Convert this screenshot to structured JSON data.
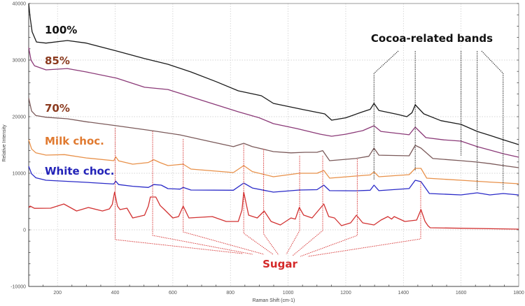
{
  "chart_data": {
    "type": "line",
    "title": "",
    "xlabel": "Raman Shift (cm-1)",
    "ylabel": "Relative Intensity",
    "xlim": [
      100,
      1800
    ],
    "ylim": [
      -10000,
      40000
    ],
    "xticks": [
      "200",
      "400",
      "600",
      "800",
      "1000",
      "1200",
      "1400",
      "1600",
      "1800"
    ],
    "yticks": [
      "-10000",
      "0",
      "10000",
      "20000",
      "30000",
      "40000"
    ],
    "grid": true,
    "series": [
      {
        "name": "100%",
        "color": "#1a1a1a",
        "label_color": "#111111",
        "points": [
          [
            100,
            40000
          ],
          [
            105,
            37500
          ],
          [
            112,
            35000
          ],
          [
            127,
            33200
          ],
          [
            160,
            33000
          ],
          [
            234,
            33460
          ],
          [
            300,
            33000
          ],
          [
            405,
            31600
          ],
          [
            500,
            30300
          ],
          [
            583,
            29260
          ],
          [
            663,
            27900
          ],
          [
            750,
            26200
          ],
          [
            827,
            24570
          ],
          [
            907,
            23700
          ],
          [
            949,
            22350
          ],
          [
            1000,
            21800
          ],
          [
            1054,
            21240
          ],
          [
            1127,
            20500
          ],
          [
            1151,
            19380
          ],
          [
            1200,
            19800
          ],
          [
            1259,
            20860
          ],
          [
            1285,
            21300
          ],
          [
            1298,
            22350
          ],
          [
            1315,
            21100
          ],
          [
            1380,
            20400
          ],
          [
            1412,
            20000
          ],
          [
            1430,
            20700
          ],
          [
            1441,
            22100
          ],
          [
            1471,
            20500
          ],
          [
            1530,
            19300
          ],
          [
            1600,
            18640
          ],
          [
            1656,
            17400
          ],
          [
            1700,
            16700
          ],
          [
            1746,
            15930
          ],
          [
            1800,
            15060
          ]
        ]
      },
      {
        "name": "85%",
        "color": "#8b3a78",
        "label_color": "#8b3a1e",
        "points": [
          [
            100,
            32200
          ],
          [
            108,
            30000
          ],
          [
            120,
            29000
          ],
          [
            160,
            28270
          ],
          [
            234,
            28500
          ],
          [
            300,
            27900
          ],
          [
            405,
            26800
          ],
          [
            502,
            25200
          ],
          [
            583,
            24800
          ],
          [
            700,
            22900
          ],
          [
            827,
            20860
          ],
          [
            900,
            19800
          ],
          [
            949,
            18770
          ],
          [
            1030,
            17900
          ],
          [
            1112,
            16900
          ],
          [
            1151,
            16540
          ],
          [
            1200,
            16900
          ],
          [
            1259,
            17530
          ],
          [
            1298,
            18400
          ],
          [
            1322,
            17400
          ],
          [
            1420,
            16800
          ],
          [
            1441,
            18150
          ],
          [
            1478,
            16300
          ],
          [
            1540,
            15900
          ],
          [
            1600,
            15680
          ],
          [
            1656,
            14700
          ],
          [
            1700,
            14100
          ],
          [
            1746,
            13460
          ],
          [
            1800,
            12840
          ]
        ]
      },
      {
        "name": "70%",
        "color": "#7b5a5a",
        "label_color": "#8b3a1e",
        "points": [
          [
            100,
            23300
          ],
          [
            110,
            21000
          ],
          [
            125,
            20200
          ],
          [
            160,
            19900
          ],
          [
            234,
            19630
          ],
          [
            300,
            19100
          ],
          [
            405,
            18400
          ],
          [
            527,
            17530
          ],
          [
            624,
            16790
          ],
          [
            720,
            15700
          ],
          [
            810,
            14700
          ],
          [
            846,
            15300
          ],
          [
            876,
            14700
          ],
          [
            949,
            13830
          ],
          [
            1010,
            13600
          ],
          [
            1059,
            13700
          ],
          [
            1100,
            13700
          ],
          [
            1120,
            14000
          ],
          [
            1144,
            12220
          ],
          [
            1234,
            12600
          ],
          [
            1280,
            13000
          ],
          [
            1298,
            14450
          ],
          [
            1315,
            13200
          ],
          [
            1420,
            13090
          ],
          [
            1441,
            14940
          ],
          [
            1461,
            14450
          ],
          [
            1502,
            12600
          ],
          [
            1600,
            12220
          ],
          [
            1656,
            11980
          ],
          [
            1700,
            11700
          ],
          [
            1746,
            11360
          ],
          [
            1800,
            10990
          ]
        ]
      },
      {
        "name": "Milk choc.",
        "color": "#e8914a",
        "label_color": "#e07a30",
        "points": [
          [
            100,
            15930
          ],
          [
            110,
            14300
          ],
          [
            125,
            13600
          ],
          [
            160,
            13210
          ],
          [
            224,
            13300
          ],
          [
            300,
            12700
          ],
          [
            395,
            12220
          ],
          [
            402,
            12900
          ],
          [
            412,
            12200
          ],
          [
            461,
            11600
          ],
          [
            515,
            11900
          ],
          [
            534,
            12400
          ],
          [
            555,
            11900
          ],
          [
            583,
            11360
          ],
          [
            636,
            11600
          ],
          [
            663,
            10740
          ],
          [
            810,
            10120
          ],
          [
            846,
            11360
          ],
          [
            876,
            10300
          ],
          [
            949,
            9380
          ],
          [
            1039,
            10000
          ],
          [
            1100,
            10000
          ],
          [
            1124,
            10500
          ],
          [
            1144,
            9140
          ],
          [
            1234,
            9500
          ],
          [
            1285,
            9700
          ],
          [
            1298,
            10250
          ],
          [
            1315,
            9380
          ],
          [
            1420,
            9750
          ],
          [
            1441,
            10860
          ],
          [
            1461,
            10860
          ],
          [
            1481,
            9140
          ],
          [
            1600,
            8770
          ],
          [
            1700,
            8450
          ],
          [
            1800,
            8150
          ]
        ]
      },
      {
        "name": "White choc.",
        "color": "#2a2ac8",
        "label_color": "#2323b8",
        "points": [
          [
            100,
            11230
          ],
          [
            110,
            9900
          ],
          [
            125,
            9200
          ],
          [
            160,
            8770
          ],
          [
            300,
            8400
          ],
          [
            395,
            8100
          ],
          [
            402,
            8600
          ],
          [
            412,
            8000
          ],
          [
            461,
            7700
          ],
          [
            515,
            7500
          ],
          [
            534,
            8000
          ],
          [
            560,
            7900
          ],
          [
            583,
            7280
          ],
          [
            625,
            7200
          ],
          [
            636,
            7500
          ],
          [
            663,
            7040
          ],
          [
            810,
            7000
          ],
          [
            846,
            8270
          ],
          [
            876,
            7400
          ],
          [
            949,
            6670
          ],
          [
            1039,
            7040
          ],
          [
            1100,
            7100
          ],
          [
            1124,
            7900
          ],
          [
            1144,
            6920
          ],
          [
            1234,
            6900
          ],
          [
            1285,
            7000
          ],
          [
            1298,
            7900
          ],
          [
            1315,
            6920
          ],
          [
            1420,
            7300
          ],
          [
            1441,
            8770
          ],
          [
            1461,
            8520
          ],
          [
            1490,
            6420
          ],
          [
            1600,
            6170
          ],
          [
            1656,
            6540
          ],
          [
            1700,
            6170
          ],
          [
            1746,
            6420
          ],
          [
            1800,
            6170
          ]
        ]
      },
      {
        "name": "Sugar",
        "color": "#d23232",
        "label_color": "#d42828",
        "points": [
          [
            100,
            3950
          ],
          [
            105,
            4200
          ],
          [
            120,
            3800
          ],
          [
            176,
            3830
          ],
          [
            222,
            4570
          ],
          [
            266,
            3330
          ],
          [
            307,
            3950
          ],
          [
            356,
            3330
          ],
          [
            380,
            3700
          ],
          [
            390,
            4500
          ],
          [
            398,
            6670
          ],
          [
            408,
            4200
          ],
          [
            417,
            3580
          ],
          [
            441,
            3830
          ],
          [
            461,
            2100
          ],
          [
            502,
            2590
          ],
          [
            515,
            4200
          ],
          [
            522,
            5800
          ],
          [
            541,
            5800
          ],
          [
            556,
            4300
          ],
          [
            571,
            3580
          ],
          [
            600,
            2100
          ],
          [
            620,
            2350
          ],
          [
            636,
            4200
          ],
          [
            656,
            2100
          ],
          [
            737,
            2350
          ],
          [
            785,
            1480
          ],
          [
            827,
            1480
          ],
          [
            840,
            3500
          ],
          [
            846,
            6670
          ],
          [
            855,
            4500
          ],
          [
            863,
            2590
          ],
          [
            893,
            2100
          ],
          [
            917,
            3330
          ],
          [
            941,
            1480
          ],
          [
            973,
            860
          ],
          [
            1010,
            2100
          ],
          [
            1025,
            1900
          ],
          [
            1039,
            3950
          ],
          [
            1054,
            2600
          ],
          [
            1083,
            2100
          ],
          [
            1124,
            4570
          ],
          [
            1141,
            2350
          ],
          [
            1161,
            2100
          ],
          [
            1185,
            740
          ],
          [
            1217,
            1230
          ],
          [
            1237,
            2590
          ],
          [
            1259,
            1230
          ],
          [
            1298,
            860
          ],
          [
            1322,
            1730
          ],
          [
            1346,
            2350
          ],
          [
            1359,
            1900
          ],
          [
            1368,
            2350
          ],
          [
            1405,
            1480
          ],
          [
            1446,
            1730
          ],
          [
            1461,
            3580
          ],
          [
            1475,
            1500
          ],
          [
            1485,
            740
          ],
          [
            1493,
            370
          ],
          [
            1800,
            120
          ]
        ]
      }
    ],
    "annotations": {
      "sugar": {
        "text": "Sugar",
        "color": "#d42828",
        "peaks": [
          400,
          530,
          636,
          846,
          915,
          1040,
          1120,
          1240,
          1460
        ]
      },
      "cocoa": {
        "text": "Cocoa-related bands",
        "color": "#111111",
        "peaks": [
          1298,
          1441,
          1600,
          1656,
          1746
        ]
      }
    }
  }
}
